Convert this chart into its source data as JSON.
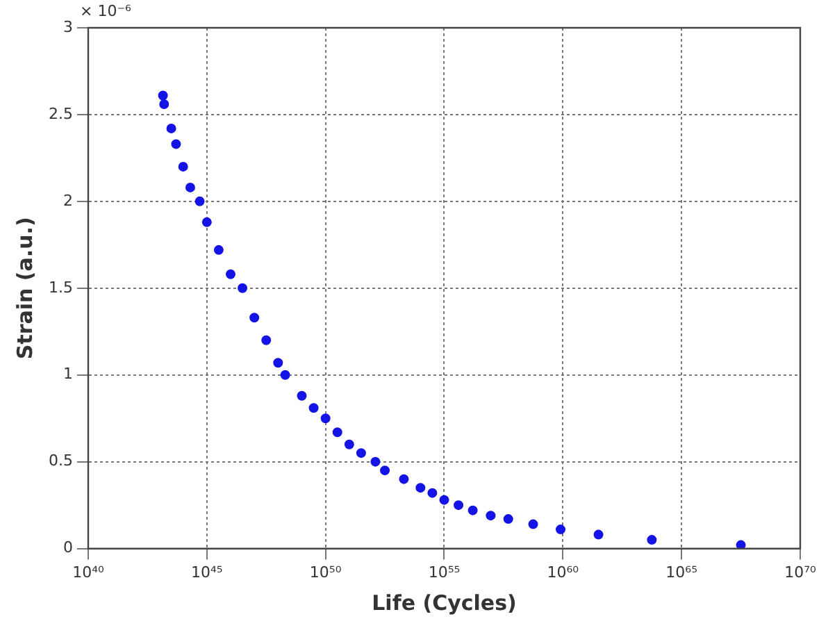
{
  "chart_data": {
    "type": "scatter",
    "xlabel": "Life (Cycles)",
    "ylabel": "Strain (a.u.)",
    "annotations": [
      "× 10⁻⁶"
    ],
    "log": "x",
    "grid": true,
    "marker": "circle",
    "legend": false,
    "xlim": [
      1e+40,
      1e+70
    ],
    "xticks": [
      {
        "value": 1e+40,
        "label": "10⁴⁰"
      },
      {
        "value": 1e+45,
        "label": "10⁴⁵"
      },
      {
        "value": 1e+50,
        "label": "10⁵⁰"
      },
      {
        "value": 1e+55,
        "label": "10⁵⁵"
      },
      {
        "value": 1e+60,
        "label": "10⁶⁰"
      },
      {
        "value": 1e+65,
        "label": "10⁶⁵"
      },
      {
        "value": 1e+70,
        "label": "10⁷⁰"
      }
    ],
    "ylim": [
      0,
      3
    ],
    "yticks": [
      0,
      0.5,
      1,
      1.5,
      2,
      2.5,
      3
    ],
    "series": [
      {
        "color": "#1414e6",
        "x": [
          1.41e+43,
          1.58e+43,
          3.16e+43,
          5.01e+43,
          1e+44,
          2e+44,
          5e+44,
          1e+45,
          3.16e+45,
          1e+46,
          3.16e+46,
          1e+47,
          3.16e+47,
          1e+48,
          2e+48,
          1e+49,
          3.16e+49,
          1e+50,
          3.16e+50,
          1e+51,
          3.16e+51,
          1.26e+52,
          3.16e+52,
          2e+53,
          1e+54,
          3.16e+54,
          1e+55,
          4e+55,
          1.6e+56,
          9.1e+56,
          5e+57,
          5.6e+58,
          8e+59,
          3.16e+61,
          5.6e+63,
          3.16e+67
        ],
        "values": [
          2.61,
          2.56,
          2.42,
          2.33,
          2.2,
          2.08,
          2.0,
          1.88,
          1.72,
          1.58,
          1.5,
          1.33,
          1.2,
          1.07,
          1.0,
          0.88,
          0.81,
          0.75,
          0.67,
          0.6,
          0.55,
          0.5,
          0.45,
          0.4,
          0.35,
          0.32,
          0.28,
          0.25,
          0.22,
          0.19,
          0.17,
          0.14,
          0.11,
          0.08,
          0.05,
          0.02
        ]
      }
    ]
  }
}
